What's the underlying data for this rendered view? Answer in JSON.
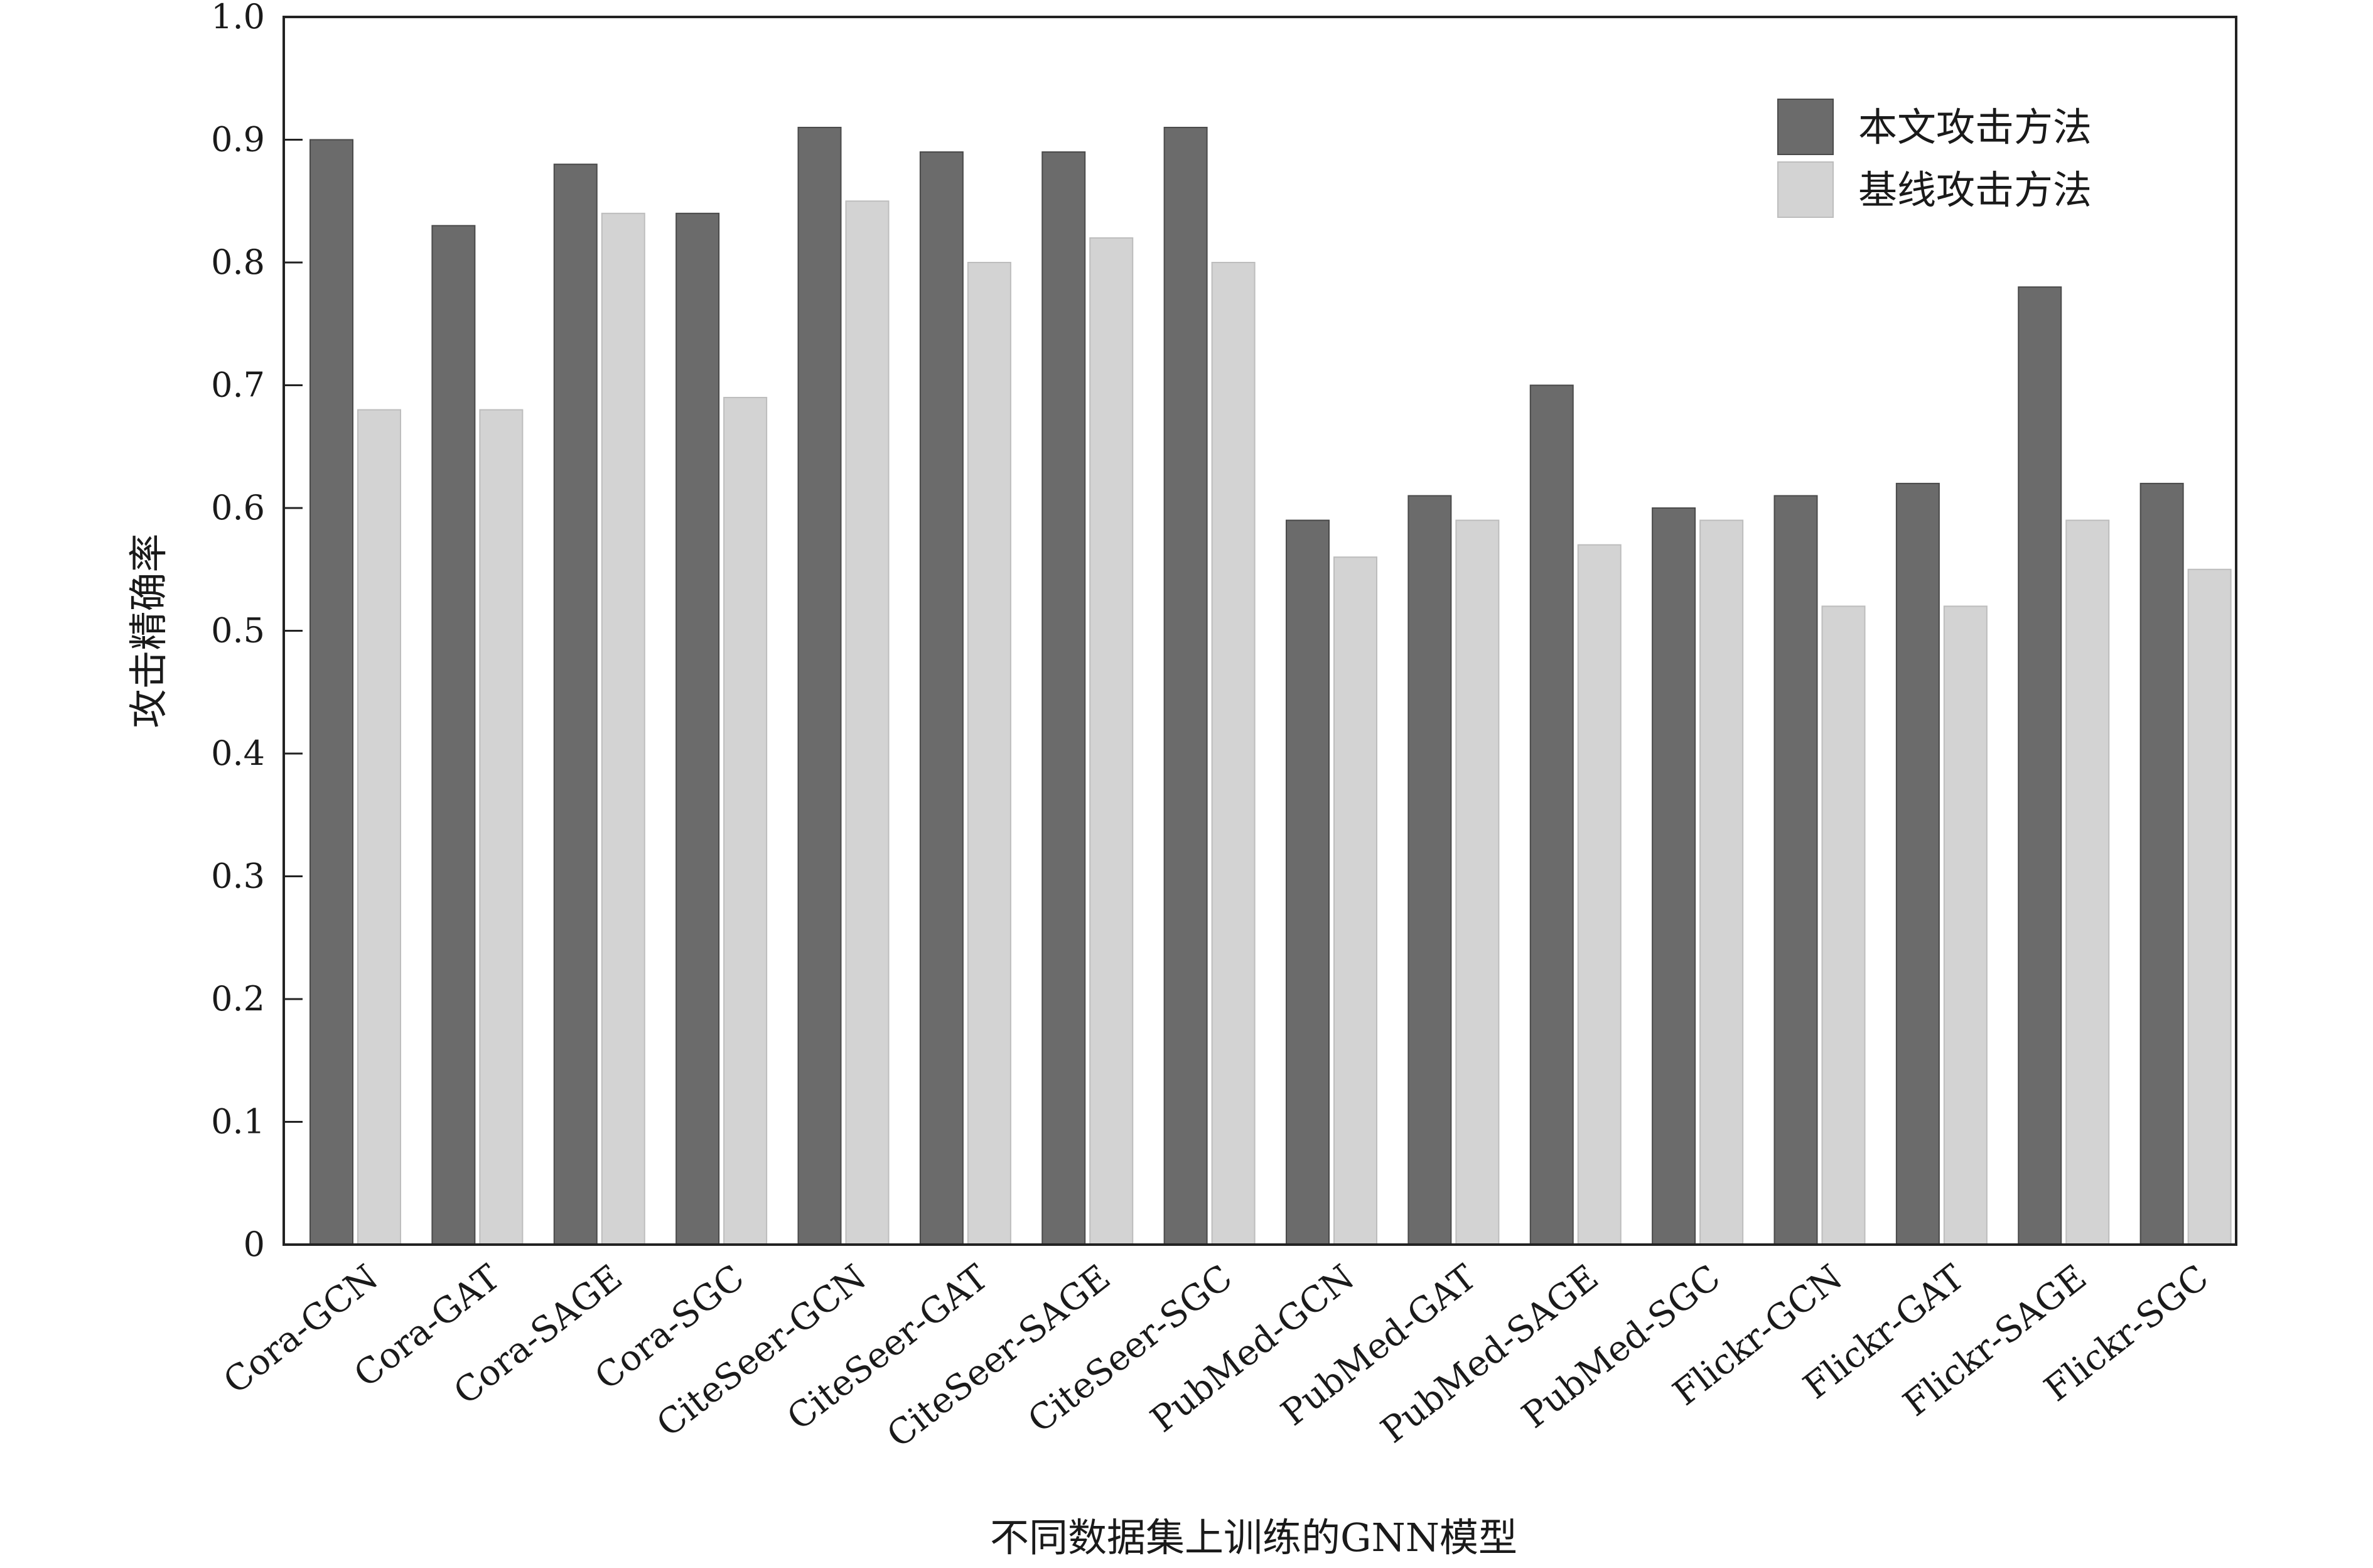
{
  "chart_data": {
    "type": "bar",
    "title": "",
    "xlabel": "不同数据集上训练的GNN模型",
    "ylabel": "攻击精确率",
    "ylim": [
      0,
      1.0
    ],
    "yticks": [
      "0",
      "0.1",
      "0.2",
      "0.3",
      "0.4",
      "0.5",
      "0.6",
      "0.7",
      "0.8",
      "0.9",
      "1.0"
    ],
    "grid": false,
    "legend_position": "top-right",
    "categories": [
      "Cora-GCN",
      "Cora-GAT",
      "Cora-SAGE",
      "Cora-SGC",
      "CiteSeer-GCN",
      "CiteSeer-GAT",
      "CiteSeer-SAGE",
      "CiteSeer-SGC",
      "PubMed-GCN",
      "PubMed-GAT",
      "PubMed-SAGE",
      "PubMed-SGC",
      "Flickr-GCN",
      "Flickr-GAT",
      "Flickr-SAGE",
      "Flickr-SGC"
    ],
    "series": [
      {
        "name": "本文攻击方法",
        "color": "#6b6b6b",
        "values": [
          0.9,
          0.83,
          0.88,
          0.84,
          0.91,
          0.89,
          0.89,
          0.91,
          0.59,
          0.61,
          0.7,
          0.6,
          0.61,
          0.62,
          0.78,
          0.62
        ]
      },
      {
        "name": "基线攻击方法",
        "color": "#d3d3d3",
        "values": [
          0.68,
          0.68,
          0.84,
          0.69,
          0.85,
          0.8,
          0.82,
          0.8,
          0.56,
          0.59,
          0.57,
          0.59,
          0.52,
          0.52,
          0.59,
          0.55
        ]
      }
    ]
  }
}
